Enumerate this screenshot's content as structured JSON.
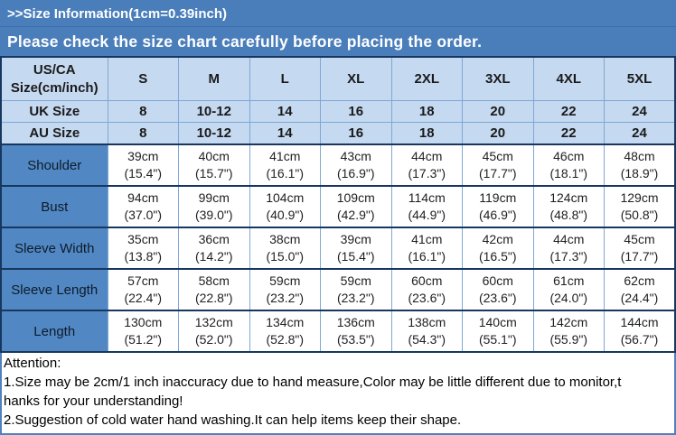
{
  "banner": {
    "line1": ">>Size Information(1cm=0.39inch)",
    "line2": "Please check the size chart carefully before placing the order."
  },
  "table": {
    "corner": {
      "line1": "US/CA",
      "line2": "Size(cm/inch)"
    },
    "size_columns": [
      "S",
      "M",
      "L",
      "XL",
      "2XL",
      "3XL",
      "4XL",
      "5XL"
    ],
    "region_rows": [
      {
        "label": "UK Size",
        "values": [
          "8",
          "10-12",
          "14",
          "16",
          "18",
          "20",
          "22",
          "24"
        ]
      },
      {
        "label": "AU Size",
        "values": [
          "8",
          "10-12",
          "14",
          "16",
          "18",
          "20",
          "22",
          "24"
        ]
      }
    ],
    "measurement_rows": [
      {
        "label": "Shoulder",
        "cells": [
          {
            "cm": "39cm",
            "inch": "(15.4\")"
          },
          {
            "cm": "40cm",
            "inch": "(15.7\")"
          },
          {
            "cm": "41cm",
            "inch": "(16.1\")"
          },
          {
            "cm": "43cm",
            "inch": "(16.9\")"
          },
          {
            "cm": "44cm",
            "inch": "(17.3\")"
          },
          {
            "cm": "45cm",
            "inch": "(17.7\")"
          },
          {
            "cm": "46cm",
            "inch": "(18.1\")"
          },
          {
            "cm": "48cm",
            "inch": "(18.9\")"
          }
        ]
      },
      {
        "label": "Bust",
        "cells": [
          {
            "cm": "94cm",
            "inch": "(37.0\")"
          },
          {
            "cm": "99cm",
            "inch": "(39.0\")"
          },
          {
            "cm": "104cm",
            "inch": "(40.9\")"
          },
          {
            "cm": "109cm",
            "inch": "(42.9\")"
          },
          {
            "cm": "114cm",
            "inch": "(44.9\")"
          },
          {
            "cm": "119cm",
            "inch": "(46.9\")"
          },
          {
            "cm": "124cm",
            "inch": "(48.8\")"
          },
          {
            "cm": "129cm",
            "inch": "(50.8\")"
          }
        ]
      },
      {
        "label": "Sleeve Width",
        "cells": [
          {
            "cm": "35cm",
            "inch": "(13.8\")"
          },
          {
            "cm": "36cm",
            "inch": "(14.2\")"
          },
          {
            "cm": "38cm",
            "inch": "(15.0\")"
          },
          {
            "cm": "39cm",
            "inch": "(15.4\")"
          },
          {
            "cm": "41cm",
            "inch": "(16.1\")"
          },
          {
            "cm": "42cm",
            "inch": "(16.5\")"
          },
          {
            "cm": "44cm",
            "inch": "(17.3\")"
          },
          {
            "cm": "45cm",
            "inch": "(17.7\")"
          }
        ]
      },
      {
        "label": "Sleeve Length",
        "cells": [
          {
            "cm": "57cm",
            "inch": "(22.4\")"
          },
          {
            "cm": "58cm",
            "inch": "(22.8\")"
          },
          {
            "cm": "59cm",
            "inch": "(23.2\")"
          },
          {
            "cm": "59cm",
            "inch": "(23.2\")"
          },
          {
            "cm": "60cm",
            "inch": "(23.6\")"
          },
          {
            "cm": "60cm",
            "inch": "(23.6\")"
          },
          {
            "cm": "61cm",
            "inch": "(24.0\")"
          },
          {
            "cm": "62cm",
            "inch": "(24.4\")"
          }
        ]
      },
      {
        "label": "Length",
        "cells": [
          {
            "cm": "130cm",
            "inch": "(51.2\")"
          },
          {
            "cm": "132cm",
            "inch": "(52.0\")"
          },
          {
            "cm": "134cm",
            "inch": "(52.8\")"
          },
          {
            "cm": "136cm",
            "inch": "(53.5\")"
          },
          {
            "cm": "138cm",
            "inch": "(54.3\")"
          },
          {
            "cm": "140cm",
            "inch": "(55.1\")"
          },
          {
            "cm": "142cm",
            "inch": "(55.9\")"
          },
          {
            "cm": "144cm",
            "inch": "(56.7\")"
          }
        ]
      }
    ]
  },
  "attention": {
    "lines": [
      "Attention:",
      "1.Size may be 2cm/1 inch inaccuracy due to hand measure,Color may be little different due to monitor,t",
      "hanks for your understanding!",
      "2.Suggestion of cold water hand washing.It can help items keep their shape."
    ]
  },
  "colors": {
    "banner_blue": "#4a7ebb",
    "header_light_blue": "#c5d9f1",
    "label_medium_blue": "#5188c4",
    "grid_blue": "#7fa8d4",
    "dark_navy": "#17375e"
  }
}
